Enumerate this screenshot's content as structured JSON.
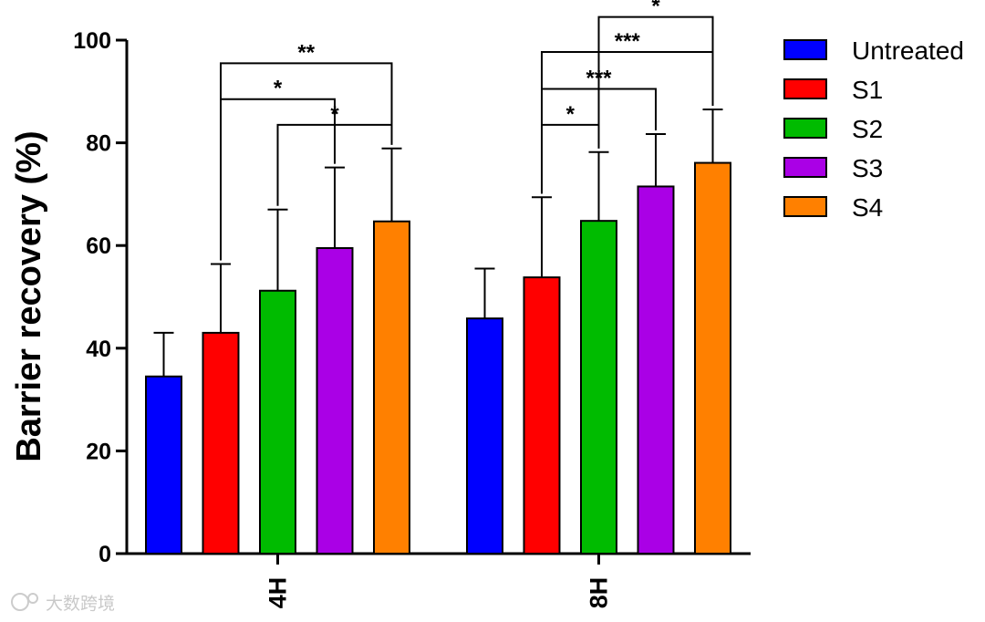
{
  "chart_data": {
    "type": "bar",
    "title": "",
    "xlabel": "",
    "ylabel": "Barrier recovery (%)",
    "ylim": [
      0,
      100
    ],
    "yticks": [
      "0",
      "20",
      "40",
      "60",
      "80",
      "100"
    ],
    "categories": [
      "4H",
      "8H"
    ],
    "series": [
      {
        "name": "Untreated",
        "color": "#0000ff",
        "values": [
          34.5,
          45.8
        ],
        "errors": [
          8.5,
          9.7
        ]
      },
      {
        "name": "S1",
        "color": "#ff0000",
        "values": [
          43,
          53.8
        ],
        "errors": [
          13.4,
          15.6
        ]
      },
      {
        "name": "S2",
        "color": "#00bb00",
        "values": [
          51.2,
          64.8
        ],
        "errors": [
          15.8,
          13.4
        ]
      },
      {
        "name": "S3",
        "color": "#aa00e6",
        "values": [
          59.5,
          71.5
        ],
        "errors": [
          15.7,
          10.2
        ]
      },
      {
        "name": "S4",
        "color": "#ff8000",
        "values": [
          64.7,
          76.1
        ],
        "errors": [
          14.2,
          10.4
        ]
      }
    ],
    "legend_position": "right",
    "significance": [
      {
        "group": "4H",
        "from": "S1",
        "to": "S4",
        "label": "**",
        "level": 95.5
      },
      {
        "group": "4H",
        "from": "S1",
        "to": "S3",
        "label": "*",
        "level": 88.5
      },
      {
        "group": "4H",
        "from": "S2",
        "to": "S4",
        "label": "*",
        "level": 83.5
      },
      {
        "group": "8H",
        "from": "S2",
        "to": "S4",
        "label": "*",
        "level": 104.5
      },
      {
        "group": "8H",
        "from": "S1",
        "to": "S4",
        "label": "***",
        "level": 97.7
      },
      {
        "group": "8H",
        "from": "S1",
        "to": "S3",
        "label": "***",
        "level": 90.5
      },
      {
        "group": "8H",
        "from": "S1",
        "to": "S2",
        "label": "*",
        "level": 83.5
      }
    ]
  },
  "watermark": {
    "text": "大数跨境"
  }
}
